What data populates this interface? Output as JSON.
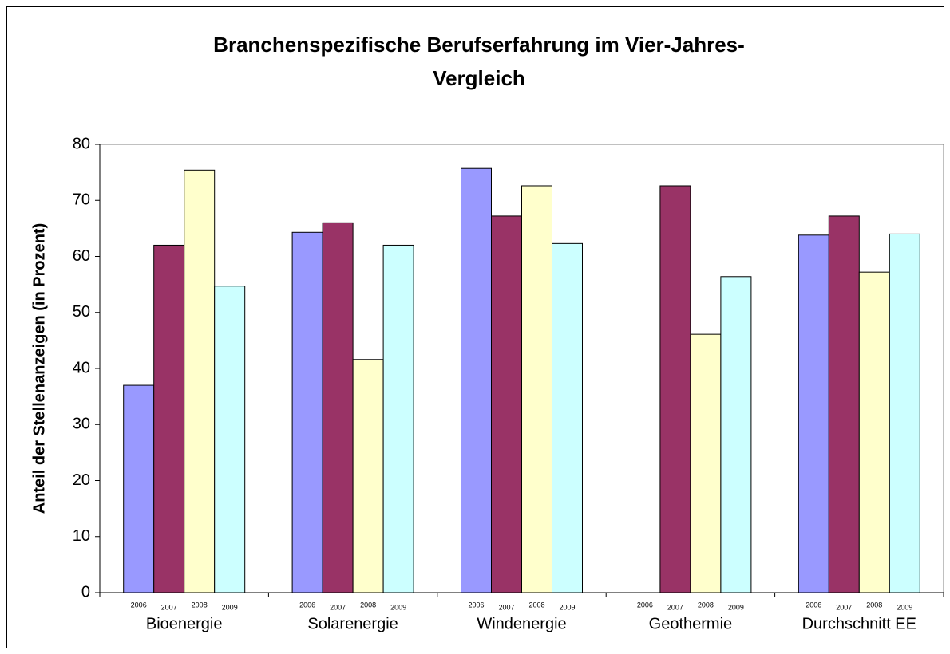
{
  "chart_data": {
    "type": "bar",
    "title": [
      "Branchenspezifische Berufserfahrung im Vier-Jahres-",
      "Vergleich"
    ],
    "ylabel": "Anteil der Stellenanzeigen (in Prozent)",
    "categories": [
      "Bioenergie",
      "Solarenergie",
      "Windenergie",
      "Geothermie",
      "Durchschnitt EE"
    ],
    "series": [
      {
        "name": "2006",
        "color": "#9999ff",
        "values": [
          37.0,
          64.3,
          75.7,
          null,
          63.8
        ]
      },
      {
        "name": "2007",
        "color": "#993366",
        "values": [
          62.0,
          66.0,
          67.2,
          72.6,
          67.2
        ]
      },
      {
        "name": "2008",
        "color": "#ffffcc",
        "values": [
          75.4,
          41.6,
          72.6,
          46.1,
          57.2
        ]
      },
      {
        "name": "2009",
        "color": "#ccffff",
        "values": [
          54.7,
          62.0,
          62.3,
          56.4,
          64.0
        ]
      }
    ],
    "ylim": [
      0,
      80
    ],
    "yticks": [
      0,
      10,
      20,
      30,
      40,
      50,
      60,
      70,
      80
    ],
    "grid": false
  }
}
